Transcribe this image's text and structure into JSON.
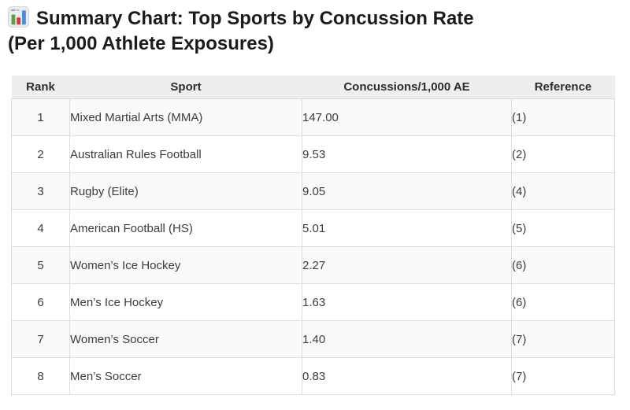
{
  "page": {
    "title_line1": "Summary Chart: Top Sports by Concussion Rate",
    "title_line2": "(Per 1,000 Athlete Exposures)",
    "title_icon": "bar-chart-emoji"
  },
  "table": {
    "headers": [
      "Rank",
      "Sport",
      "Concussions/1,000 AE",
      "Reference"
    ],
    "rows": [
      [
        "1",
        "Mixed Martial Arts (MMA)",
        "147.00",
        "(1)"
      ],
      [
        "2",
        "Australian Rules Football",
        "9.53",
        "(2)"
      ],
      [
        "3",
        "Rugby (Elite)",
        "9.05",
        "(4)"
      ],
      [
        "4",
        "American Football (HS)",
        "5.01",
        "(5)"
      ],
      [
        "5",
        "Women’s Ice Hockey",
        "2.27",
        "(6)"
      ],
      [
        "6",
        "Men’s Ice Hockey",
        "1.63",
        "(6)"
      ],
      [
        "7",
        "Women’s Soccer",
        "1.40",
        "(7)"
      ],
      [
        "8",
        "Men’s Soccer",
        "0.83",
        "(7)"
      ]
    ]
  },
  "colors": {
    "title_text": "#1b1b1b",
    "header_bg": "#eeeeee",
    "header_text": "#2c2c2c",
    "row_alt_bg": "#f9f9f9",
    "row_bg": "#ffffff",
    "border": "#dddddd",
    "cell_text": "#3c3c3c",
    "icon_green": "#57a345",
    "icon_red": "#d23b3b",
    "icon_blue": "#4a8fdc"
  },
  "chart_data": {
    "type": "table",
    "title": "Summary Chart: Top Sports by Concussion Rate (Per 1,000 Athlete Exposures)",
    "columns": [
      "Rank",
      "Sport",
      "Concussions/1,000 AE",
      "Reference"
    ],
    "rows": [
      [
        "1",
        "Mixed Martial Arts (MMA)",
        "147.00",
        "(1)"
      ],
      [
        "2",
        "Australian Rules Football",
        "9.53",
        "(2)"
      ],
      [
        "3",
        "Rugby (Elite)",
        "9.05",
        "(4)"
      ],
      [
        "4",
        "American Football (HS)",
        "5.01",
        "(5)"
      ],
      [
        "5",
        "Women’s Ice Hockey",
        "2.27",
        "(6)"
      ],
      [
        "6",
        "Men’s Ice Hockey",
        "1.63",
        "(6)"
      ],
      [
        "7",
        "Women’s Soccer",
        "1.40",
        "(7)"
      ],
      [
        "8",
        "Men’s Soccer",
        "0.83",
        "(7)"
      ]
    ],
    "categories": [
      "Mixed Martial Arts (MMA)",
      "Australian Rules Football",
      "Rugby (Elite)",
      "American Football (HS)",
      "Women’s Ice Hockey",
      "Men’s Ice Hockey",
      "Women’s Soccer",
      "Men’s Soccer"
    ],
    "values": [
      147.0,
      9.53,
      9.05,
      5.01,
      2.27,
      1.63,
      1.4,
      0.83
    ],
    "ylabel": "Concussions/1,000 AE"
  }
}
